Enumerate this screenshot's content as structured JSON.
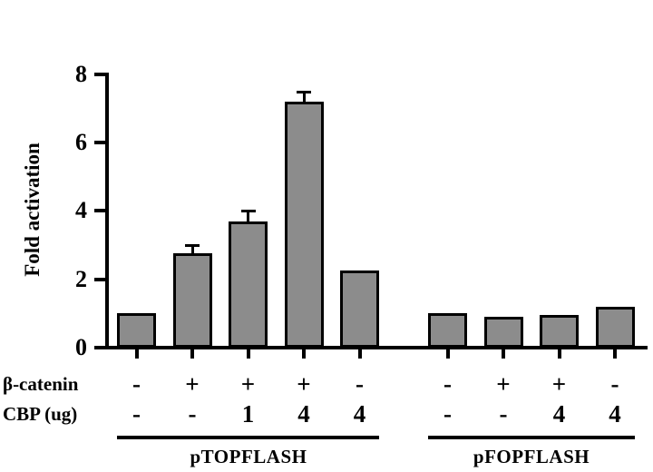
{
  "chart_data": {
    "type": "bar",
    "title": "",
    "ylabel": "Fold activation",
    "ylim": [
      0,
      8
    ],
    "yticks": [
      0,
      2,
      4,
      6,
      8
    ],
    "grid": false,
    "legend": "none",
    "bar_color": "#8c8c8c",
    "bar_border_color": "#000000",
    "row_labels": [
      "β-catenin",
      "CBP (ug)"
    ],
    "groups": [
      {
        "name": "pTOPFLASH",
        "bars": [
          {
            "beta_catenin": "-",
            "cbp_ug": "-",
            "value": 1.0,
            "error": 0
          },
          {
            "beta_catenin": "+",
            "cbp_ug": "-",
            "value": 2.75,
            "error": 0.25
          },
          {
            "beta_catenin": "+",
            "cbp_ug": "1",
            "value": 3.7,
            "error": 0.3
          },
          {
            "beta_catenin": "+",
            "cbp_ug": "4",
            "value": 7.2,
            "error": 0.3
          },
          {
            "beta_catenin": "-",
            "cbp_ug": "4",
            "value": 2.25,
            "error": 0
          }
        ]
      },
      {
        "name": "pFOPFLASH",
        "bars": [
          {
            "beta_catenin": "-",
            "cbp_ug": "-",
            "value": 1.0,
            "error": 0
          },
          {
            "beta_catenin": "+",
            "cbp_ug": "-",
            "value": 0.9,
            "error": 0
          },
          {
            "beta_catenin": "+",
            "cbp_ug": "4",
            "value": 0.95,
            "error": 0
          },
          {
            "beta_catenin": "-",
            "cbp_ug": "4",
            "value": 1.2,
            "error": 0
          }
        ]
      }
    ]
  }
}
